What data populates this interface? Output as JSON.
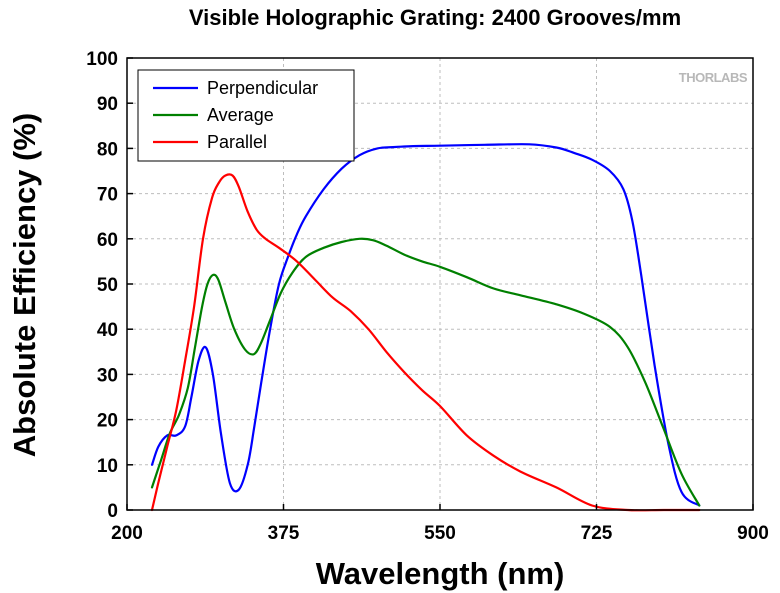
{
  "chart_data": {
    "type": "line",
    "title": "Visible Holographic Grating: 2400 Grooves/mm",
    "xlabel": "Wavelength (nm)",
    "ylabel": "Absolute Efficiency (%)",
    "xlim": [
      200,
      900
    ],
    "ylim": [
      0,
      100
    ],
    "xticks": [
      200,
      375,
      550,
      725,
      900
    ],
    "yticks": [
      0,
      10,
      20,
      30,
      40,
      50,
      60,
      70,
      80,
      90,
      100
    ],
    "grid": true,
    "legend_position": "top-left",
    "watermark": "THORLABS",
    "series": [
      {
        "name": "Perpendicular",
        "color": "#0000ff",
        "x": [
          228,
          235,
          245,
          255,
          265,
          272,
          280,
          288,
          296,
          305,
          315,
          325,
          335,
          342,
          350,
          360,
          370,
          380,
          390,
          400,
          420,
          440,
          460,
          480,
          500,
          520,
          550,
          600,
          650,
          680,
          700,
          720,
          740,
          755,
          765,
          775,
          790,
          805,
          820,
          840
        ],
        "y": [
          10,
          14,
          16.5,
          16.5,
          18.5,
          25,
          33,
          36,
          30,
          17,
          6,
          4.5,
          10,
          18,
          28,
          40,
          50,
          56,
          61,
          65,
          71,
          75.5,
          78.5,
          80,
          80.3,
          80.5,
          80.6,
          80.8,
          80.9,
          80.2,
          79,
          77.5,
          75,
          71,
          64,
          52,
          32,
          15,
          4,
          1
        ]
      },
      {
        "name": "Average",
        "color": "#008000",
        "x": [
          228,
          238,
          248,
          258,
          268,
          276,
          284,
          290,
          296,
          302,
          310,
          320,
          332,
          342,
          350,
          360,
          372,
          385,
          400,
          420,
          440,
          460,
          475,
          490,
          510,
          530,
          550,
          580,
          610,
          640,
          680,
          710,
          740,
          760,
          780,
          800,
          820,
          840
        ],
        "y": [
          5,
          11,
          17,
          21,
          27,
          36,
          45,
          50,
          52,
          51,
          46,
          40,
          35.5,
          34.5,
          37,
          42,
          48,
          52.5,
          56,
          58,
          59.3,
          60,
          59.7,
          58.5,
          56.5,
          55,
          53.8,
          51.5,
          49,
          47.5,
          45.5,
          43.5,
          40.5,
          36,
          28,
          18,
          8,
          1
        ]
      },
      {
        "name": "Parallel",
        "color": "#ff0000",
        "x": [
          228,
          235,
          245,
          255,
          265,
          275,
          285,
          295,
          303,
          310,
          318,
          325,
          335,
          345,
          355,
          370,
          390,
          410,
          430,
          450,
          470,
          490,
          510,
          530,
          550,
          580,
          610,
          640,
          680,
          720,
          760,
          800,
          840
        ],
        "y": [
          0,
          6,
          14,
          22,
          33,
          45,
          60,
          69,
          72.5,
          74,
          74,
          71.5,
          66,
          62,
          60,
          58,
          55,
          51,
          47,
          44,
          40,
          35,
          30.5,
          26.5,
          23,
          16.5,
          12,
          8.5,
          5,
          1,
          0,
          0,
          0
        ]
      }
    ]
  }
}
